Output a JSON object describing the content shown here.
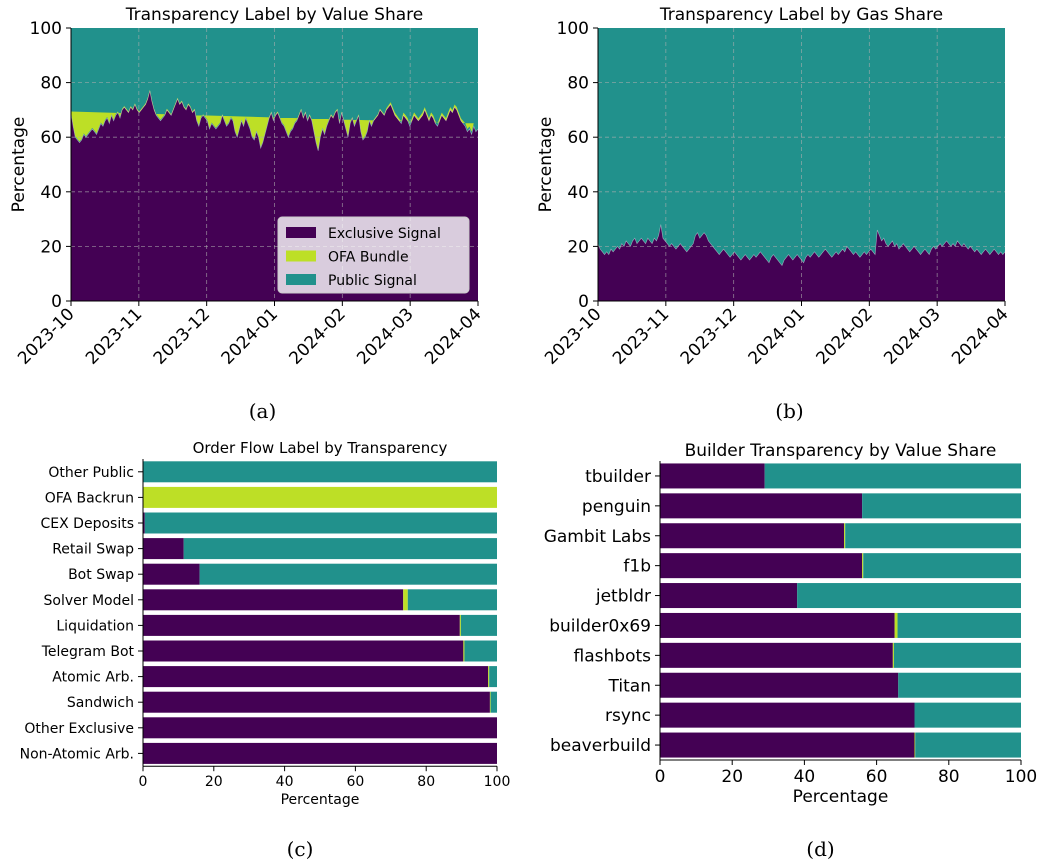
{
  "chart_data": [
    {
      "type": "area",
      "panel": "a",
      "title": "Transparency Label by Value Share",
      "ylabel": "Percentage",
      "xlabel": "",
      "caption": "(a)",
      "ylim": [
        0,
        100
      ],
      "yticks": [
        "0",
        "20",
        "40",
        "60",
        "80",
        "100"
      ],
      "xticks": [
        "2023-10",
        "2023-11",
        "2023-12",
        "2024-01",
        "2024-02",
        "2024-03",
        "2024-04"
      ],
      "x_range": [
        "2023-10-01",
        "2024-04-01"
      ],
      "grid": true,
      "legend_position": "lower-right",
      "series": [
        {
          "name": "Exclusive Signal",
          "color": "#440154",
          "values": [
            69,
            64,
            60,
            59,
            58,
            59,
            61,
            60,
            61,
            62,
            63,
            62,
            61,
            63,
            65,
            64,
            66,
            67,
            65,
            68,
            66,
            68,
            69,
            67,
            70,
            71,
            70,
            69,
            71,
            70,
            72,
            70,
            69,
            70,
            71,
            72,
            74,
            77,
            73,
            70,
            68,
            67,
            66,
            67,
            68,
            70,
            69,
            68,
            70,
            72,
            74,
            72,
            73,
            71,
            70,
            72,
            71,
            69,
            70,
            66,
            64,
            67,
            68,
            67,
            66,
            63,
            65,
            64,
            63,
            64,
            65,
            68,
            66,
            64,
            65,
            67,
            66,
            62,
            60,
            63,
            66,
            64,
            67,
            65,
            63,
            60,
            59,
            62,
            60,
            56,
            58,
            61,
            64,
            67,
            69,
            66,
            68,
            69,
            67,
            65,
            64,
            62,
            60,
            62,
            63,
            65,
            66,
            68,
            70,
            67,
            69,
            66,
            68,
            66,
            62,
            58,
            55,
            60,
            63,
            61,
            64,
            66,
            68,
            67,
            69,
            70,
            65,
            69,
            66,
            63,
            60,
            65,
            67,
            64,
            66,
            68,
            62,
            59,
            60,
            62,
            66,
            64,
            66,
            67,
            68,
            70,
            69,
            68,
            70,
            71,
            72,
            70,
            68,
            67,
            66,
            65,
            68,
            67,
            66,
            64,
            66,
            68,
            67,
            66,
            67,
            68,
            70,
            68,
            66,
            68,
            67,
            65,
            64,
            66,
            68,
            67,
            66,
            68,
            70,
            69,
            71,
            70,
            68,
            66,
            65,
            64,
            62,
            63,
            61,
            64,
            62,
            63
          ]
        },
        {
          "name": "OFA Bundle",
          "color": "#bddf26",
          "values": [
            0.4,
            0.4,
            0.4,
            0.4,
            0.4,
            0.4,
            0.4,
            0.4,
            0.4,
            0.4,
            0.4,
            0.4,
            0.4,
            0.4,
            0.4,
            0.4,
            0.4,
            0.4,
            0.4,
            0.4,
            0.4,
            0.4,
            0.4,
            0.4,
            0.4,
            0.4,
            0.4,
            0.4,
            0.4,
            0.4,
            0.4,
            0.4,
            0.4,
            0.4,
            0.4,
            0.4,
            0.4,
            0.4,
            0.4,
            0.4,
            0.4,
            0.4,
            0.4,
            0.4,
            0.4,
            0.4,
            0.4,
            0.4,
            0.4,
            0.4,
            0.4,
            0.4,
            0.4,
            0.4,
            0.4,
            0.4,
            0.4,
            0.4,
            0.4,
            0.4,
            0.4,
            0.4,
            0.4,
            0.4,
            0.4,
            0.4,
            0.4,
            0.4,
            0.4,
            0.4,
            0.4,
            0.4,
            0.4,
            0.4,
            0.4,
            0.4,
            0.4,
            0.4,
            0.4,
            0.4,
            0.4,
            0.4,
            0.4,
            0.4,
            0.4,
            0.4,
            0.4,
            0.4,
            0.4,
            0.4,
            0.4,
            0.4,
            0.4,
            0.4,
            0.4,
            0.4,
            0.4,
            0.4,
            0.4,
            0.4,
            0.4,
            0.4,
            0.4,
            0.4,
            0.4,
            0.4,
            0.4,
            0.4,
            0.4,
            0.4,
            0.4,
            0.4,
            0.4,
            0.4,
            0.4,
            0.4,
            0.4,
            0.4,
            0.4,
            0.4,
            0.4,
            0.4,
            0.4,
            0.4,
            0.4,
            0.4,
            0.4,
            0.4,
            0.4,
            0.4,
            0.4,
            0.4,
            0.4,
            0.4,
            0.4,
            0.4,
            0.4,
            0.4,
            0.4,
            0.4,
            0.4,
            0.4,
            0.4,
            0.4,
            0.4,
            0.4,
            0.4,
            0.4,
            0.6,
            0.7,
            0.8,
            0.9,
            1.0,
            0.9,
            0.8,
            0.9,
            1.0,
            1.1,
            1.0,
            0.9,
            1.0,
            1.1,
            1.0,
            0.9,
            1.0,
            1.1,
            1.0,
            0.9,
            1.0,
            1.1,
            1.0,
            0.9,
            1.0,
            1.1,
            1.0,
            0.9,
            1.0,
            1.1,
            1.0,
            0.9,
            1.0,
            1.1,
            1.0,
            0.9,
            1.0,
            1.1,
            1.0,
            0.9,
            1.0,
            1.1
          ]
        },
        {
          "name": "Public Signal",
          "color": "#21918c",
          "values": "remainder to 100"
        }
      ],
      "legend": [
        {
          "label": "Exclusive Signal",
          "color": "#440154"
        },
        {
          "label": "OFA Bundle",
          "color": "#bddf26"
        },
        {
          "label": "Public Signal",
          "color": "#21918c"
        }
      ]
    },
    {
      "type": "area",
      "panel": "b",
      "title": "Transparency Label by Gas Share",
      "ylabel": "Percentage",
      "xlabel": "",
      "caption": "(b)",
      "ylim": [
        0,
        100
      ],
      "yticks": [
        "0",
        "20",
        "40",
        "60",
        "80",
        "100"
      ],
      "xticks": [
        "2023-10",
        "2023-11",
        "2023-12",
        "2024-01",
        "2024-02",
        "2024-03",
        "2024-04"
      ],
      "x_range": [
        "2023-10-01",
        "2024-04-01"
      ],
      "grid": true,
      "series": [
        {
          "name": "Exclusive Signal",
          "color": "#440154",
          "values": [
            21,
            19,
            18,
            17,
            18,
            17,
            19,
            18,
            19,
            20,
            19,
            21,
            20,
            22,
            21,
            20,
            22,
            23,
            21,
            22,
            23,
            22,
            21,
            23,
            22,
            21,
            23,
            22,
            24,
            28,
            23,
            22,
            21,
            20,
            21,
            20,
            19,
            20,
            21,
            20,
            19,
            18,
            19,
            20,
            21,
            24,
            25,
            23,
            24,
            25,
            24,
            22,
            21,
            20,
            19,
            18,
            17,
            18,
            19,
            18,
            17,
            16,
            17,
            18,
            17,
            16,
            15,
            16,
            17,
            16,
            15,
            16,
            17,
            16,
            17,
            18,
            17,
            16,
            15,
            14,
            16,
            17,
            16,
            15,
            14,
            13,
            15,
            16,
            17,
            16,
            15,
            16,
            17,
            16,
            15,
            14,
            16,
            17,
            16,
            17,
            18,
            17,
            16,
            17,
            18,
            19,
            18,
            17,
            16,
            17,
            18,
            17,
            18,
            19,
            18,
            20,
            19,
            18,
            17,
            18,
            17,
            16,
            17,
            18,
            17,
            18,
            19,
            18,
            17,
            26,
            24,
            22,
            23,
            21,
            20,
            21,
            22,
            20,
            21,
            19,
            20,
            21,
            20,
            19,
            18,
            19,
            20,
            19,
            18,
            17,
            18,
            19,
            18,
            17,
            19,
            20,
            19,
            20,
            21,
            20,
            21,
            22,
            21,
            20,
            21,
            20,
            22,
            21,
            20,
            21,
            20,
            19,
            20,
            19,
            18,
            19,
            18,
            17,
            18,
            19,
            18,
            17,
            18,
            19,
            18,
            17,
            18,
            17,
            18
          ]
        },
        {
          "name": "OFA Bundle",
          "color": "#bddf26",
          "values": "~0"
        },
        {
          "name": "Public Signal",
          "color": "#21918c",
          "values": "remainder to 100"
        }
      ]
    },
    {
      "type": "bar",
      "orientation": "horizontal",
      "stacked": true,
      "panel": "c",
      "title": "Order Flow Label by Transparency",
      "xlabel": "Percentage",
      "caption": "(c)",
      "xlim": [
        0,
        100
      ],
      "xticks": [
        "0",
        "20",
        "40",
        "60",
        "80",
        "100"
      ],
      "categories": [
        "Other Public",
        "OFA Backrun",
        "CEX Deposits",
        "Retail Swap",
        "Bot Swap",
        "Solver Model",
        "Liquidation",
        "Telegram Bot",
        "Atomic Arb.",
        "Sandwich",
        "Other Exclusive",
        "Non-Atomic Arb."
      ],
      "series": [
        {
          "name": "Exclusive Signal",
          "color": "#440154",
          "values": [
            0,
            0,
            0.5,
            11.5,
            16,
            73.5,
            89.5,
            90.5,
            97.5,
            98,
            100,
            100
          ]
        },
        {
          "name": "OFA Bundle",
          "color": "#bddf26",
          "values": [
            0,
            100,
            0,
            0,
            0,
            1.3,
            0.3,
            0.3,
            0.3,
            0.2,
            0,
            0
          ]
        },
        {
          "name": "Public Signal",
          "color": "#21918c",
          "values": [
            100,
            0,
            99.5,
            88.5,
            84,
            25.2,
            10.2,
            9.2,
            2.2,
            1.8,
            0,
            0
          ]
        }
      ]
    },
    {
      "type": "bar",
      "orientation": "horizontal",
      "stacked": true,
      "panel": "d",
      "title": "Builder Transparency by Value Share",
      "xlabel": "Percentage",
      "caption": "(d)",
      "xlim": [
        0,
        100
      ],
      "xticks": [
        "0",
        "20",
        "40",
        "60",
        "80",
        "100"
      ],
      "categories": [
        "tbuilder",
        "penguin",
        "Gambit Labs",
        "f1b",
        "jetbldr",
        "builder0x69",
        "flashbots",
        "Titan",
        "rsync",
        "beaverbuild"
      ],
      "series": [
        {
          "name": "Exclusive Signal",
          "color": "#440154",
          "values": [
            29,
            56,
            51,
            56,
            38,
            65,
            64.5,
            66,
            70.5,
            70.5
          ]
        },
        {
          "name": "OFA Bundle",
          "color": "#bddf26",
          "values": [
            0,
            0,
            0.3,
            0.3,
            0,
            0.8,
            0.3,
            0,
            0,
            0.2
          ]
        },
        {
          "name": "Public Signal",
          "color": "#21918c",
          "values": [
            71,
            44,
            48.7,
            43.7,
            62,
            34.2,
            35.2,
            34,
            29.5,
            29.3
          ]
        }
      ]
    }
  ]
}
